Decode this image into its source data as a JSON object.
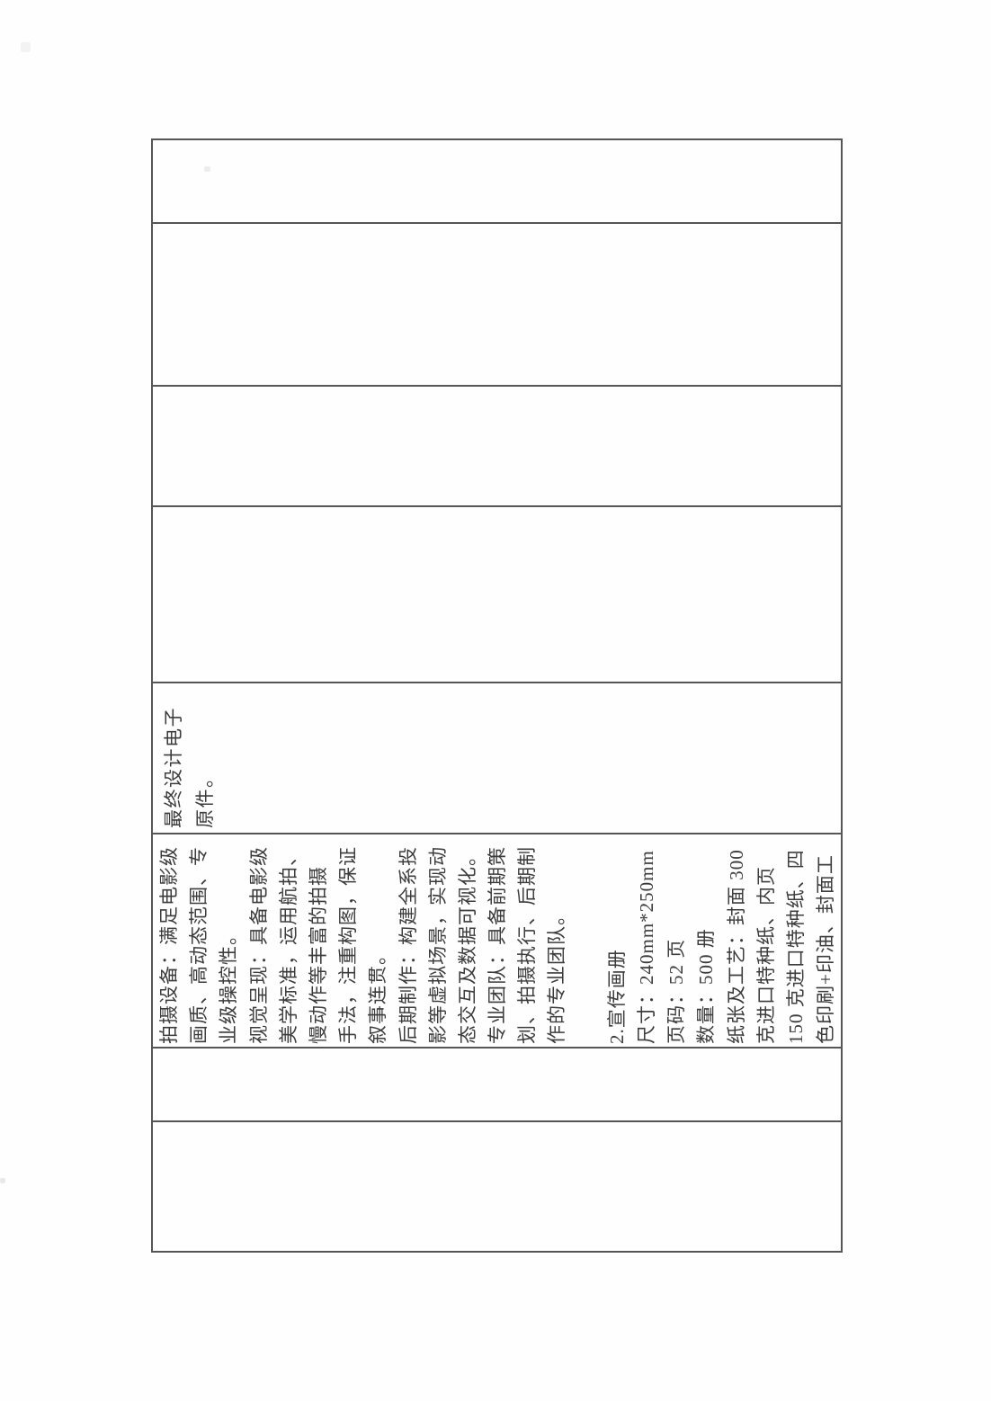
{
  "table": {
    "colors": {
      "border": "#565656",
      "text": "#3c3c3c",
      "page_bg": "#fefefe"
    },
    "rows": [
      {
        "id": "row-1",
        "text_lines": []
      },
      {
        "id": "row-2",
        "text_lines": []
      },
      {
        "id": "row-3",
        "text_lines": []
      },
      {
        "id": "row-4",
        "text_lines": []
      },
      {
        "id": "row-5",
        "text_lines": [
          "最终设计电子",
          "原件。"
        ]
      },
      {
        "id": "row-6",
        "text_lines": [
          "拍摄设备：满足电影级",
          "画质、高动态范围、专",
          "业级操控性。",
          "视觉呈现：具备电影级",
          "美学标准，运用航拍、",
          "慢动作等丰富的拍摄",
          "手法，注重构图，保证",
          "叙事连贯。",
          "后期制作：构建全系投",
          "影等虚拟场景，实现动",
          "态交互及数据可视化。",
          "专业团队：具备前期策",
          "划、拍摄执行、后期制",
          "作的专业团队。",
          "",
          "2.宣传画册",
          "尺寸：240mm*250mm",
          "页码：52 页",
          "数量：500 册",
          "纸张及工艺：封面 300",
          "克进口特种纸、内页",
          "150 克进口特种纸、四",
          "色印刷+印油、封面工"
        ]
      },
      {
        "id": "row-7",
        "text_lines": []
      },
      {
        "id": "row-8",
        "text_lines": []
      }
    ]
  }
}
